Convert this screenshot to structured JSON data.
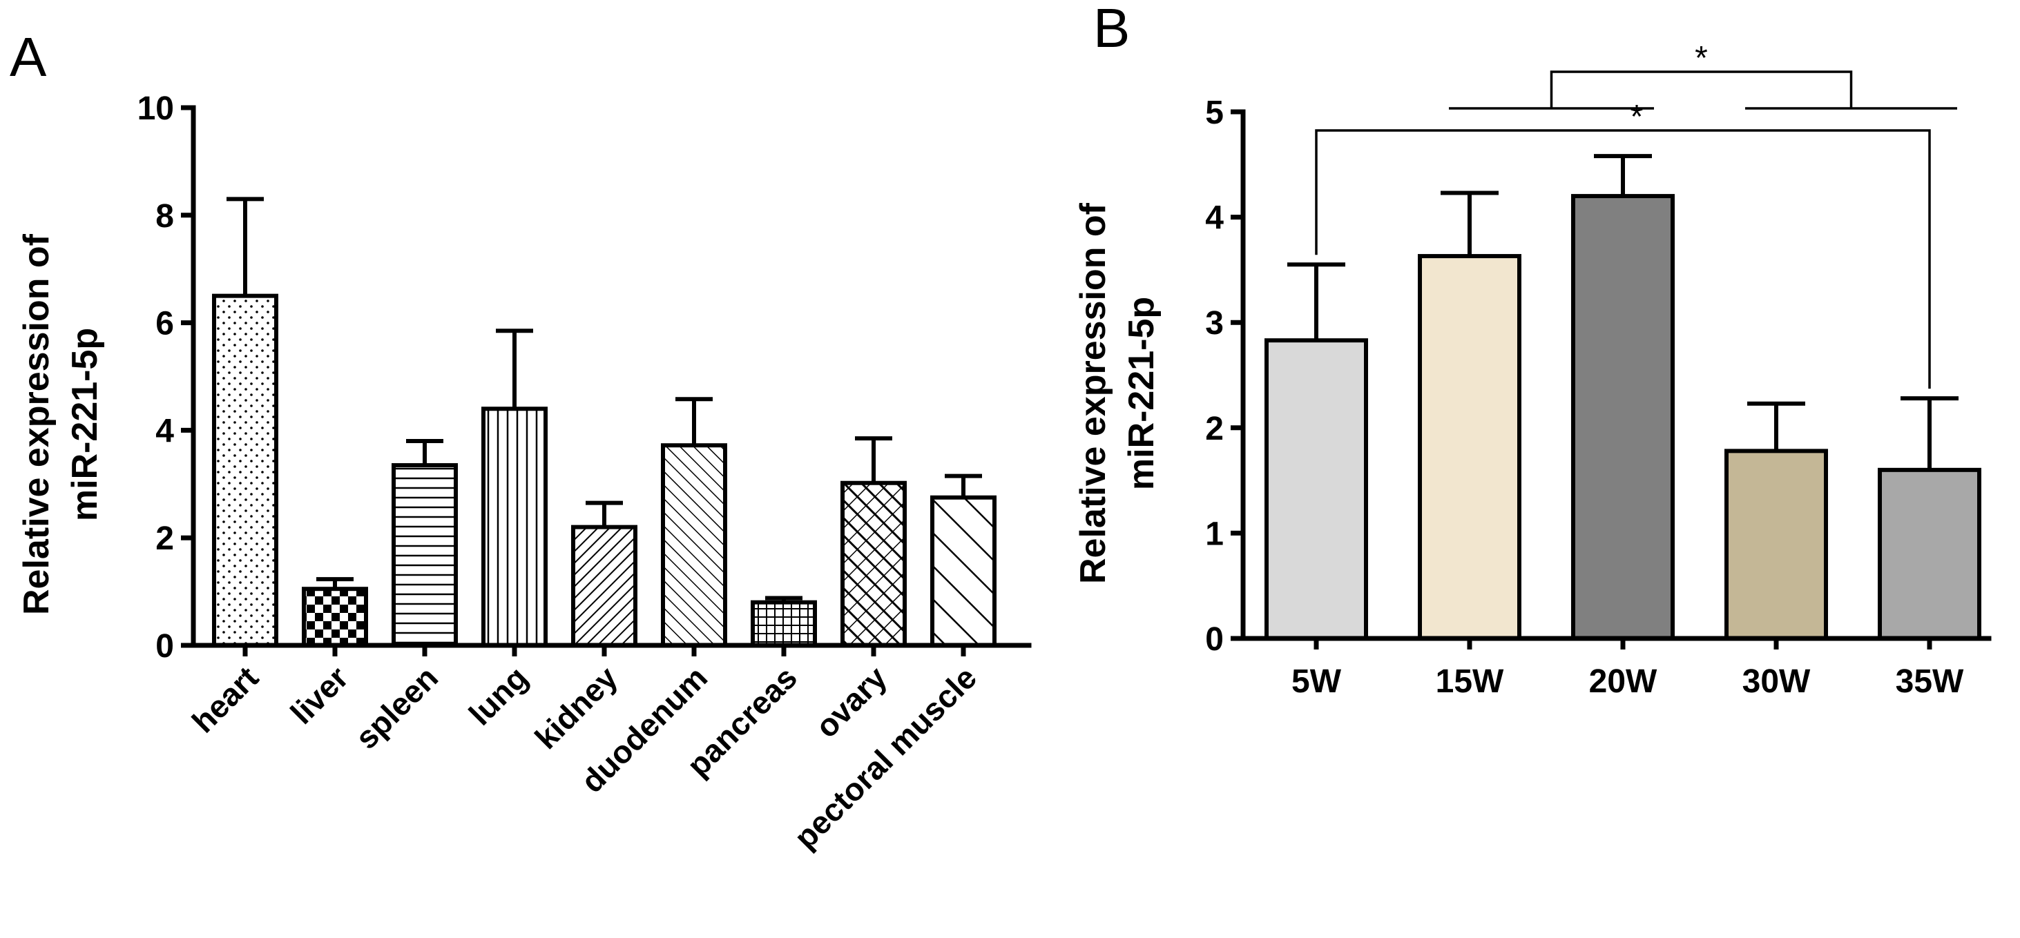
{
  "chart_data": [
    {
      "panel": "A",
      "type": "bar",
      "title": "",
      "xlabel": "",
      "ylabel_lines": [
        "Relative expression of",
        "miR-221-5p"
      ],
      "ylim": [
        0,
        10
      ],
      "yticks": [
        "0",
        "2",
        "4",
        "6",
        "8",
        "10"
      ],
      "yticks_values": [
        0,
        2,
        4,
        6,
        8,
        10
      ],
      "categories": [
        "heart",
        "liver",
        "spleen",
        "lung",
        "kidney",
        "duodenum",
        "pancreas",
        "ovary",
        "pectoral muscle"
      ],
      "values": [
        6.5,
        1.05,
        3.35,
        4.4,
        2.2,
        3.72,
        0.8,
        3.02,
        2.75
      ],
      "errors": [
        1.8,
        0.18,
        0.45,
        1.45,
        0.45,
        0.86,
        0.08,
        0.83,
        0.4
      ],
      "patterns": [
        "dots",
        "checker",
        "hlines",
        "vlines",
        "diag-right-dense",
        "diag-left",
        "grid",
        "crosshatch",
        "diag-left-wide"
      ]
    },
    {
      "panel": "B",
      "type": "bar",
      "title": "",
      "xlabel": "",
      "ylabel_lines": [
        "Relative expression of",
        "miR-221-5p"
      ],
      "ylim": [
        0,
        5
      ],
      "yticks": [
        "0",
        "1",
        "2",
        "3",
        "4",
        "5"
      ],
      "yticks_values": [
        0,
        1,
        2,
        3,
        4,
        5
      ],
      "categories": [
        "5W",
        "15W",
        "20W",
        "30W",
        "35W"
      ],
      "values": [
        2.83,
        3.63,
        4.2,
        1.78,
        1.6
      ],
      "errors": [
        0.72,
        0.6,
        0.38,
        0.45,
        0.68
      ],
      "colors": [
        "#d9d9d9",
        "#f2e6cf",
        "#808080",
        "#c4b796",
        "#a8a8a8"
      ],
      "significance": [
        {
          "label": "*",
          "group1": [
            "15W",
            "20W"
          ],
          "group2": [
            "30W",
            "35W"
          ]
        },
        {
          "label": "*",
          "from": "5W",
          "to": "35W"
        }
      ]
    }
  ]
}
